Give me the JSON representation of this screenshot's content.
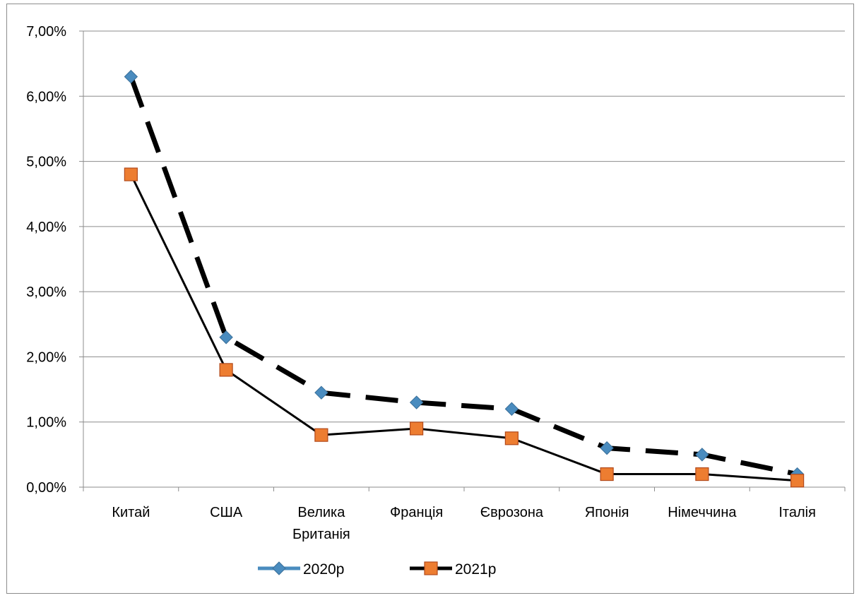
{
  "chart_data": {
    "type": "line",
    "title": "",
    "xlabel": "",
    "ylabel": "",
    "categories": [
      [
        "Китай"
      ],
      [
        "США"
      ],
      [
        "Велика",
        "Британія"
      ],
      [
        "Франція"
      ],
      [
        "Єврозона"
      ],
      [
        "Японія"
      ],
      [
        "Німеччина"
      ],
      [
        "Італія"
      ]
    ],
    "ylim": [
      0,
      0.07
    ],
    "yticks": [
      0,
      0.01,
      0.02,
      0.03,
      0.04,
      0.05,
      0.06,
      0.07
    ],
    "ytick_labels": [
      "0,00%",
      "1,00%",
      "2,00%",
      "3,00%",
      "4,00%",
      "5,00%",
      "6,00%",
      "7,00%"
    ],
    "grid": true,
    "legend_position": "bottom",
    "series": [
      {
        "name": "2020р",
        "values": [
          0.063,
          0.023,
          0.0145,
          0.013,
          0.012,
          0.006,
          0.005,
          0.002
        ],
        "line_color": "#000000",
        "line_style": "dashed",
        "marker": "diamond",
        "marker_color": "#4a8cbf"
      },
      {
        "name": "2021р",
        "values": [
          0.048,
          0.018,
          0.008,
          0.009,
          0.0075,
          0.002,
          0.002,
          0.001
        ],
        "line_color": "#000000",
        "line_style": "solid",
        "marker": "square",
        "marker_color": "#ed7d31"
      }
    ]
  }
}
